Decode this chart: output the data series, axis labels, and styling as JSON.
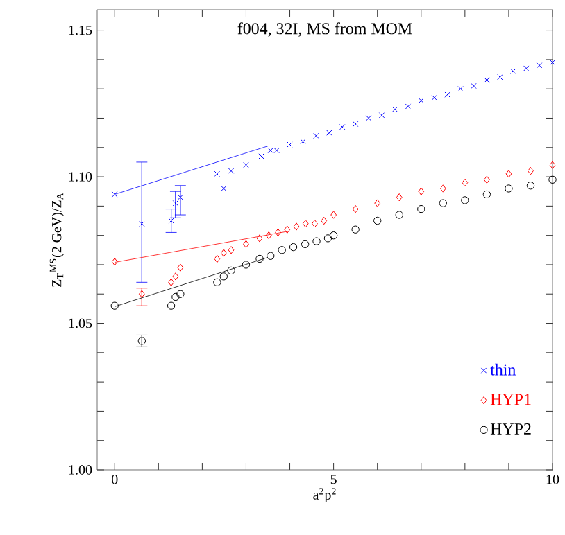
{
  "chart_data": {
    "type": "scatter",
    "title": "f004, 32I, MS from MOM",
    "xlabel": "a$^{2}$p$^{2}$",
    "ylabel": "Z$_{T}$$^{MS}$(2 GeV)/Z$_{A}$",
    "xlim": [
      -0.4,
      10
    ],
    "ylim": [
      1.0,
      1.157
    ],
    "xticks": [
      0,
      {
        "value": 1,
        "label": null
      },
      {
        "value": 2,
        "label": null
      },
      {
        "value": 3,
        "label": null
      },
      {
        "value": 4,
        "label": null
      },
      5,
      {
        "value": 6,
        "label": null
      },
      {
        "value": 7,
        "label": null
      },
      {
        "value": 8,
        "label": null
      },
      {
        "value": 9,
        "label": null
      },
      10
    ],
    "yticks": [
      {
        "value": 1.0,
        "label": "1.00"
      },
      {
        "value": 1.01,
        "label": null
      },
      {
        "value": 1.02,
        "label": null
      },
      {
        "value": 1.03,
        "label": null
      },
      {
        "value": 1.04,
        "label": null
      },
      {
        "value": 1.05,
        "label": "1.05"
      },
      {
        "value": 1.06,
        "label": null
      },
      {
        "value": 1.07,
        "label": null
      },
      {
        "value": 1.08,
        "label": null
      },
      {
        "value": 1.09,
        "label": null
      },
      {
        "value": 1.1,
        "label": "1.10"
      },
      {
        "value": 1.11,
        "label": null
      },
      {
        "value": 1.12,
        "label": null
      },
      {
        "value": 1.13,
        "label": null
      },
      {
        "value": 1.14,
        "label": null
      },
      {
        "value": 1.15,
        "label": "1.15"
      }
    ],
    "legend": "bottom right",
    "grid": false,
    "series": [
      {
        "name": "thin",
        "color": "#0000ff",
        "marker": "cross",
        "x": [
          0,
          0.62,
          1.29,
          1.39,
          1.5,
          2.34,
          2.49,
          2.66,
          3.0,
          3.35,
          3.56,
          3.7,
          4.0,
          4.3,
          4.6,
          4.9,
          5.2,
          5.5,
          5.8,
          6.1,
          6.4,
          6.7,
          7.0,
          7.3,
          7.6,
          7.9,
          8.2,
          8.5,
          8.8,
          9.1,
          9.4,
          9.7,
          10.0
        ],
        "values": [
          1.094,
          1.084,
          1.085,
          1.091,
          1.093,
          1.101,
          1.096,
          1.102,
          1.104,
          1.107,
          1.109,
          1.109,
          1.111,
          1.112,
          1.114,
          1.115,
          1.117,
          1.118,
          1.12,
          1.121,
          1.123,
          1.124,
          1.126,
          1.127,
          1.128,
          1.13,
          1.131,
          1.133,
          1.134,
          1.136,
          1.137,
          1.138,
          1.139
        ],
        "errors": [
          null,
          [
            1.064,
            1.105
          ],
          [
            1.081,
            1.089
          ],
          [
            1.086,
            1.095
          ],
          [
            1.087,
            1.097
          ],
          null,
          null,
          null,
          null,
          null,
          null,
          null,
          null,
          null,
          null,
          null,
          null,
          null,
          null,
          null,
          null,
          null,
          null,
          null,
          null,
          null,
          null,
          null,
          null,
          null,
          null,
          null,
          null
        ]
      },
      {
        "name": "HYP1",
        "color": "#ff0000",
        "marker": "diamond",
        "x": [
          0,
          0.62,
          1.29,
          1.39,
          1.5,
          2.34,
          2.49,
          2.66,
          3.0,
          3.31,
          3.52,
          3.73,
          3.94,
          4.15,
          4.36,
          4.57,
          4.78,
          5.0,
          5.5,
          6.0,
          6.5,
          7.0,
          7.5,
          8.0,
          8.5,
          9.0,
          9.5,
          10.0
        ],
        "values": [
          1.071,
          1.06,
          1.064,
          1.066,
          1.069,
          1.072,
          1.074,
          1.075,
          1.077,
          1.079,
          1.08,
          1.081,
          1.082,
          1.083,
          1.084,
          1.084,
          1.085,
          1.087,
          1.089,
          1.091,
          1.093,
          1.095,
          1.096,
          1.098,
          1.099,
          1.101,
          1.102,
          1.104
        ],
        "errors": [
          null,
          [
            1.056,
            1.062
          ],
          null,
          null,
          null,
          null,
          null,
          null,
          null,
          null,
          null,
          null,
          null,
          null,
          null,
          null,
          null,
          null,
          null,
          null,
          null,
          null,
          null,
          null,
          null,
          null,
          null,
          null
        ]
      },
      {
        "name": "HYP2",
        "color": "#000000",
        "marker": "circle",
        "x": [
          0,
          0.62,
          1.29,
          1.39,
          1.5,
          2.34,
          2.49,
          2.66,
          3.0,
          3.31,
          3.56,
          3.82,
          4.08,
          4.35,
          4.61,
          4.87,
          5.0,
          5.5,
          6.0,
          6.5,
          7.0,
          7.5,
          8.0,
          8.5,
          9.0,
          9.5,
          10.0
        ],
        "values": [
          1.056,
          1.044,
          1.056,
          1.059,
          1.06,
          1.064,
          1.066,
          1.068,
          1.07,
          1.072,
          1.073,
          1.075,
          1.076,
          1.077,
          1.078,
          1.079,
          1.08,
          1.082,
          1.085,
          1.087,
          1.089,
          1.091,
          1.092,
          1.094,
          1.096,
          1.097,
          1.099
        ],
        "errors": [
          null,
          [
            1.042,
            1.046
          ],
          null,
          null,
          null,
          null,
          null,
          null,
          null,
          null,
          null,
          null,
          null,
          null,
          null,
          null,
          null,
          null,
          null,
          null,
          null,
          null,
          null,
          null,
          null,
          null,
          null
        ]
      },
      {
        "type": "line",
        "color": "#0000ff",
        "marker": "none",
        "x": [
          0,
          3.5
        ],
        "values": [
          1.094,
          1.1105
        ]
      },
      {
        "type": "line",
        "color": "#ff0000",
        "marker": "none",
        "x": [
          0,
          4.0
        ],
        "values": [
          1.0708,
          1.0815
        ]
      },
      {
        "type": "line",
        "color": "#000000",
        "marker": "none",
        "x": [
          0,
          3.5
        ],
        "values": [
          1.0557,
          1.0725
        ]
      }
    ]
  }
}
